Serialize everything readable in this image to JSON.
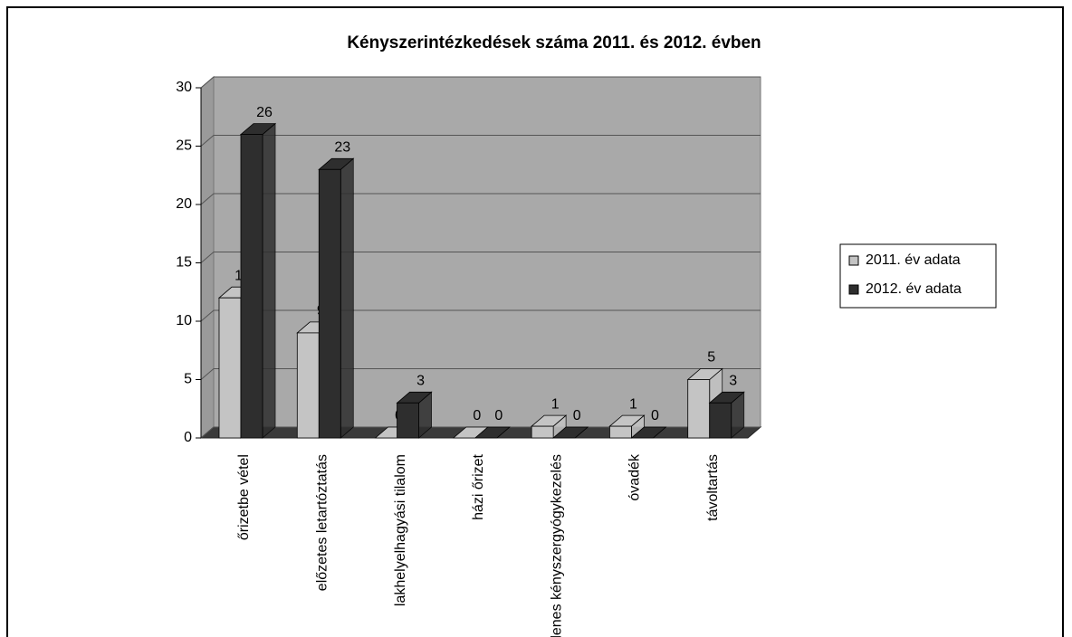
{
  "chart_data": {
    "type": "bar3d",
    "title": "Kényszerintézkedések száma 2011. és 2012. évben",
    "categories": [
      "őrizetbe vétel",
      "előzetes letartóztatás",
      "lakhelyelhagyási tilalom",
      "házi őrizet",
      "ideiglenes kényszergyógykezelés",
      "óvadék",
      "távoltartás"
    ],
    "series": [
      {
        "name": "2011. év adata",
        "color": "#c4c4c4",
        "values": [
          12,
          9,
          0,
          0,
          1,
          1,
          5
        ]
      },
      {
        "name": "2012. év adata",
        "color": "#2e2e2e",
        "values": [
          26,
          23,
          3,
          0,
          0,
          0,
          3
        ]
      }
    ],
    "ylim": [
      0,
      30
    ],
    "yticks": [
      0,
      5,
      10,
      15,
      20,
      25,
      30
    ],
    "grid": true,
    "legend": "right"
  }
}
